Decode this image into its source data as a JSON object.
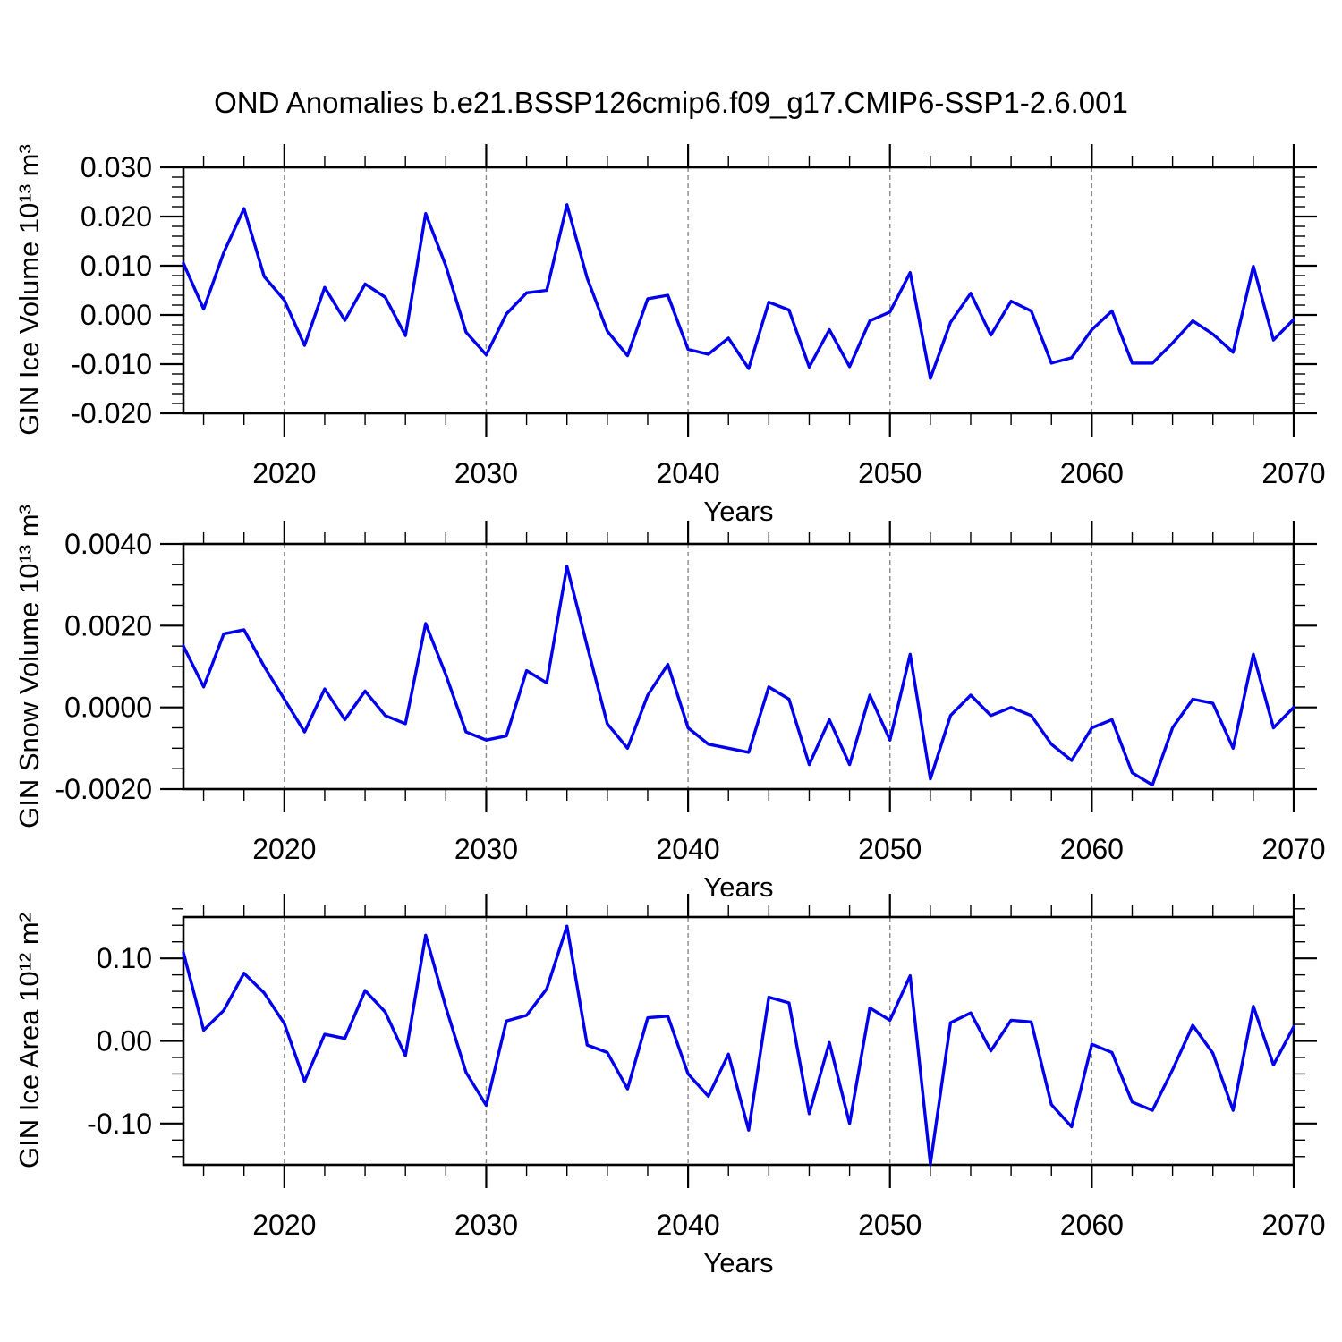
{
  "title": "OND Anomalies b.e21.BSSP126cmip6.f09_g17.CMIP6-SSP1-2.6.001",
  "colors": {
    "line": "#0000ee",
    "grid": "#8a8a8a",
    "axis": "#000000",
    "background": "#ffffff"
  },
  "chart_data": [
    {
      "type": "line",
      "ylabel": "GIN Ice Volume 10¹³ m³",
      "xlabel": "Years",
      "x_start": 2015,
      "x_end": 2070,
      "x_step": 1,
      "xlim": [
        2015,
        2070
      ],
      "xticks": [
        2020,
        2030,
        2040,
        2050,
        2060,
        2070
      ],
      "xminor_step": 2,
      "grid_x": [
        2020,
        2030,
        2040,
        2050,
        2060
      ],
      "ylim": [
        -0.02,
        0.03
      ],
      "yticks": [
        0.03,
        0.02,
        0.01,
        0.0,
        -0.01,
        -0.02
      ],
      "yminor_step": 0.002,
      "y_decimals": 3,
      "values": [
        0.0105,
        0.0012,
        0.0127,
        0.0216,
        0.0078,
        0.003,
        -0.0062,
        0.0056,
        -0.0011,
        0.0063,
        0.0036,
        -0.0042,
        0.0206,
        0.01,
        -0.0035,
        -0.0081,
        0.0002,
        0.0045,
        0.005,
        0.0224,
        0.0075,
        -0.0033,
        -0.0083,
        0.0033,
        0.004,
        -0.007,
        -0.008,
        -0.0047,
        -0.0109,
        0.0026,
        0.001,
        -0.0106,
        -0.003,
        -0.0105,
        -0.0012,
        0.0006,
        0.0086,
        -0.0129,
        -0.0015,
        0.0044,
        -0.0041,
        0.0028,
        0.0008,
        -0.0098,
        -0.0087,
        -0.003,
        0.0008,
        -0.0098,
        -0.0098,
        -0.0057,
        -0.0012,
        -0.0039,
        -0.0076,
        0.0099,
        -0.0051,
        -0.0009
      ]
    },
    {
      "type": "line",
      "ylabel": "GIN Snow Volume 10¹³ m³",
      "xlabel": "Years",
      "x_start": 2015,
      "x_end": 2070,
      "x_step": 1,
      "xlim": [
        2015,
        2070
      ],
      "xticks": [
        2020,
        2030,
        2040,
        2050,
        2060,
        2070
      ],
      "xminor_step": 2,
      "grid_x": [
        2020,
        2030,
        2040,
        2050,
        2060
      ],
      "ylim": [
        -0.002,
        0.004
      ],
      "yticks": [
        0.004,
        0.002,
        0.0,
        -0.002
      ],
      "yminor_step": 0.0005,
      "y_decimals": 4,
      "values": [
        0.0015,
        0.0005,
        0.0018,
        0.0019,
        0.001,
        0.0002,
        -0.0006,
        0.00045,
        -0.0003,
        0.0004,
        -0.0002,
        -0.0004,
        0.00205,
        0.0008,
        -0.0006,
        -0.0008,
        -0.0007,
        0.0009,
        0.0006,
        0.00345,
        0.0015,
        -0.0004,
        -0.001,
        0.0003,
        0.00105,
        -0.0005,
        -0.0009,
        -0.001,
        -0.0011,
        0.0005,
        0.0002,
        -0.0014,
        -0.0003,
        -0.0014,
        0.0003,
        -0.0008,
        0.0013,
        -0.00175,
        -0.0002,
        0.0003,
        -0.0002,
        0.0,
        -0.0002,
        -0.0009,
        -0.0013,
        -0.0005,
        -0.0003,
        -0.0016,
        -0.0019,
        -0.0005,
        0.0002,
        0.0001,
        -0.001,
        0.0013,
        -0.0005,
        0.0
      ]
    },
    {
      "type": "line",
      "ylabel": "GIN Ice Area 10¹² m²",
      "xlabel": "Years",
      "x_start": 2015,
      "x_end": 2070,
      "x_step": 1,
      "xlim": [
        2015,
        2070
      ],
      "xticks": [
        2020,
        2030,
        2040,
        2050,
        2060,
        2070
      ],
      "xminor_step": 2,
      "grid_x": [
        2020,
        2030,
        2040,
        2050,
        2060
      ],
      "ylim": [
        -0.15,
        0.15
      ],
      "yticks": [
        0.1,
        0.0,
        -0.1
      ],
      "yminor_step": 0.02,
      "y_decimals": 2,
      "values": [
        0.107,
        0.013,
        0.037,
        0.082,
        0.058,
        0.021,
        -0.049,
        0.008,
        0.003,
        0.061,
        0.035,
        -0.018,
        0.128,
        0.041,
        -0.038,
        -0.078,
        0.024,
        0.031,
        0.063,
        0.139,
        -0.005,
        -0.014,
        -0.058,
        0.028,
        0.03,
        -0.04,
        -0.067,
        -0.016,
        -0.108,
        0.053,
        0.046,
        -0.088,
        -0.002,
        -0.1,
        0.04,
        0.025,
        0.079,
        -0.149,
        0.022,
        0.034,
        -0.012,
        0.025,
        0.023,
        -0.077,
        -0.104,
        -0.004,
        -0.014,
        -0.074,
        -0.084,
        -0.035,
        0.019,
        -0.015,
        -0.084,
        0.042,
        -0.029,
        0.017
      ]
    }
  ]
}
